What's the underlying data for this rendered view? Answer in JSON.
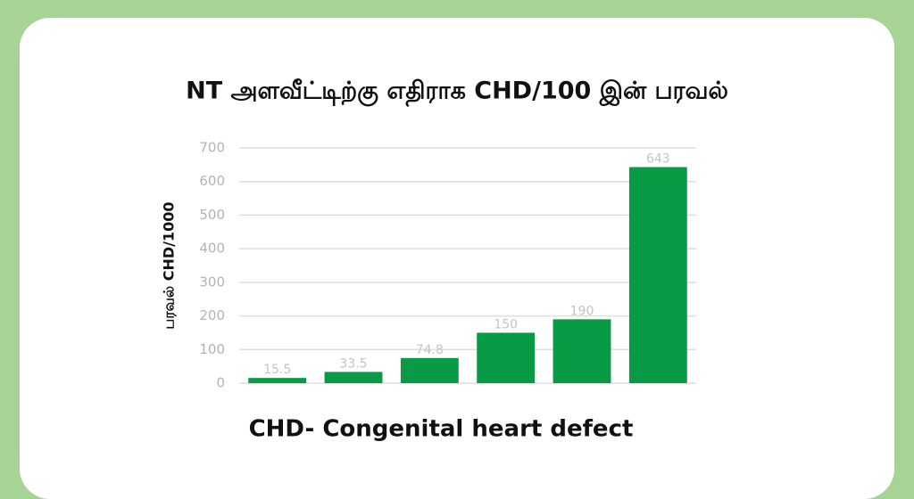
{
  "chart_data": {
    "type": "bar",
    "title": "NT அளவீட்டிற்கு எதிராக CHD/100 இன் பரவல்",
    "y_label": "பரவல் CHD/1000",
    "footnote": "CHD- Congenital heart defect",
    "categories": [
      null,
      null,
      null,
      null,
      null,
      null
    ],
    "values": [
      15.5,
      33.5,
      74.8,
      150,
      190,
      643
    ],
    "color": "#099a45",
    "ylim": [
      0,
      700
    ],
    "yticks": [
      0,
      100,
      200,
      300,
      400,
      500,
      600,
      700
    ],
    "grid": true
  }
}
